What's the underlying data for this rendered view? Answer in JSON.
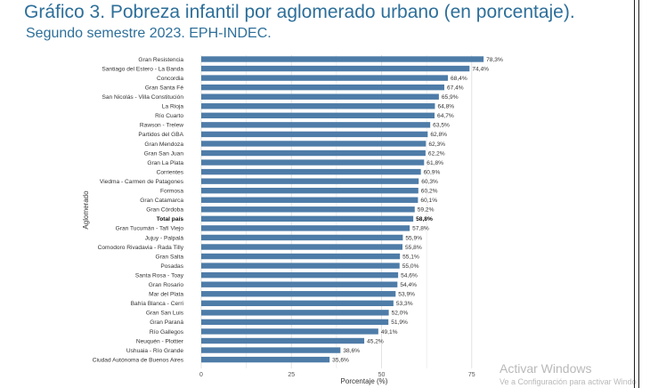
{
  "title": "Gráfico 3. Pobreza infantil por aglomerado urbano (en porcentaje).",
  "subtitle": "Segundo semestre 2023. EPH-INDEC.",
  "watermark": {
    "title": "Activar Windows",
    "subtitle": "Ve a Configuración para activar Windo"
  },
  "colors": {
    "bar": "#4e7ca8",
    "grid": "#e3e3e3",
    "title": "#2d6f9a"
  },
  "chart_data": {
    "type": "bar",
    "orientation": "horizontal",
    "title": "Gráfico 3. Pobreza infantil por aglomerado urbano (en porcentaje).",
    "subtitle": "Segundo semestre 2023. EPH-INDEC.",
    "xlabel": "Porcentaje (%)",
    "ylabel": "Aglomerado",
    "xlim": [
      0,
      86
    ],
    "xticks": [
      0,
      25,
      50,
      75
    ],
    "grid": true,
    "highlight": "Total país",
    "categories": [
      "Gran Resistencia",
      "Santiago del Estero - La Banda",
      "Concordia",
      "Gran Santa Fé",
      "San Nicolás - Villa Constitución",
      "La Rioja",
      "Río Cuarto",
      "Rawson - Trelew",
      "Partidos del GBA",
      "Gran Mendoza",
      "Gran San Juan",
      "Gran La Plata",
      "Corrientes",
      "Viedma - Carmen de Patagones",
      "Formosa",
      "Gran Catamarca",
      "Gran Córdoba",
      "Total país",
      "Gran Tucumán - Tafí Viejo",
      "Jujuy - Palpalá",
      "Comodoro Rivadavia - Rada Tilly",
      "Gran Salta",
      "Posadas",
      "Santa Rosa - Toay",
      "Gran Rosario",
      "Mar del Plata",
      "Bahía Blanca - Cerri",
      "Gran San Luis",
      "Gran Paraná",
      "Río Gallegos",
      "Neuquén - Plottier",
      "Ushuaia - Río Grande",
      "Ciudad Autónoma de Buenos Aires"
    ],
    "values": [
      78.3,
      74.4,
      68.4,
      67.4,
      65.9,
      64.8,
      64.7,
      63.5,
      62.8,
      62.3,
      62.2,
      61.8,
      60.9,
      60.3,
      60.2,
      60.1,
      59.2,
      58.8,
      57.8,
      55.9,
      55.8,
      55.1,
      55.0,
      54.6,
      54.4,
      53.9,
      53.3,
      52.0,
      51.9,
      49.1,
      45.2,
      38.6,
      35.6
    ],
    "value_labels": [
      "78,3%",
      "74,4%",
      "68,4%",
      "67,4%",
      "65,9%",
      "64,8%",
      "64,7%",
      "63,5%",
      "62,8%",
      "62,3%",
      "62,2%",
      "61,8%",
      "60,9%",
      "60,3%",
      "60,2%",
      "60,1%",
      "59,2%",
      "58,8%",
      "57,8%",
      "55,9%",
      "55,8%",
      "55,1%",
      "55,0%",
      "54,6%",
      "54,4%",
      "53,9%",
      "53,3%",
      "52,0%",
      "51,9%",
      "49,1%",
      "45,2%",
      "38,6%",
      "35,6%"
    ]
  }
}
